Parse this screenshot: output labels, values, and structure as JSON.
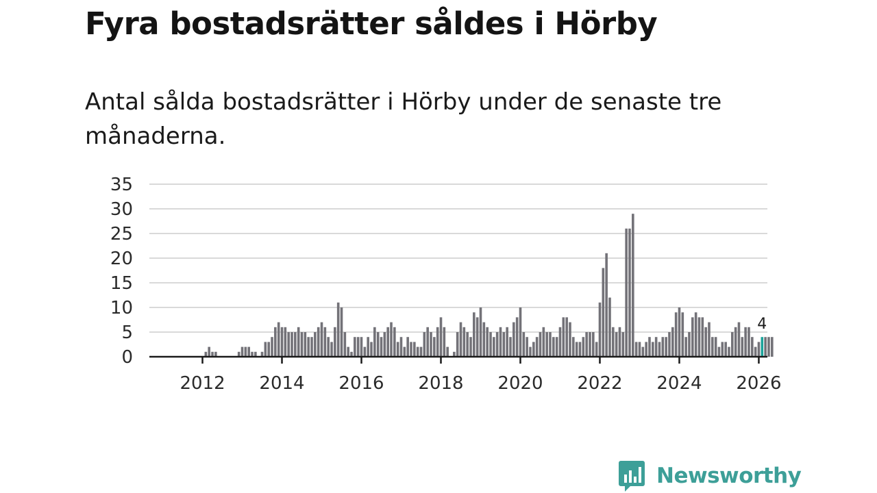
{
  "title": "Fyra bostadsrätter såldes i Hörby",
  "subtitle": "Antal sålda bostadsrätter i Hörby under de senaste tre månaderna.",
  "brand": {
    "name": "Newsworthy",
    "icon": "bar-chart-speech-bubble-icon"
  },
  "colors": {
    "bar": "#737278",
    "highlight": "#1aa39a",
    "grid": "#d9d9d9",
    "axis": "#1a1a1a",
    "brand": "#3d9f98"
  },
  "chart_data": {
    "type": "bar",
    "title": "Fyra bostadsrätter såldes i Hörby",
    "xlabel": "",
    "ylabel": "",
    "ylim": [
      0,
      35
    ],
    "yticks": [
      0,
      5,
      10,
      15,
      20,
      25,
      30,
      35
    ],
    "xticks": [
      "2012",
      "2014",
      "2016",
      "2018",
      "2020",
      "2022",
      "2024",
      "2026"
    ],
    "x_start": "2010-06",
    "grid": true,
    "annotation": {
      "label": "4",
      "index": 188
    },
    "values": [
      0,
      0,
      0,
      0,
      0,
      0,
      0,
      0,
      0,
      0,
      0,
      0,
      0,
      0,
      0,
      0,
      0,
      0,
      0,
      0,
      1,
      2,
      1,
      1,
      0,
      0,
      0,
      0,
      0,
      0,
      1,
      2,
      2,
      2,
      1,
      1,
      0,
      1,
      3,
      3,
      4,
      6,
      7,
      6,
      6,
      5,
      5,
      5,
      6,
      5,
      5,
      4,
      4,
      5,
      6,
      7,
      6,
      4,
      3,
      6,
      11,
      10,
      5,
      2,
      1,
      4,
      4,
      4,
      2,
      4,
      3,
      6,
      5,
      4,
      5,
      6,
      7,
      6,
      3,
      4,
      2,
      4,
      3,
      3,
      2,
      2,
      5,
      6,
      5,
      4,
      6,
      8,
      6,
      2,
      0,
      1,
      5,
      7,
      6,
      5,
      4,
      9,
      8,
      10,
      7,
      6,
      5,
      4,
      5,
      6,
      5,
      6,
      4,
      7,
      8,
      10,
      5,
      4,
      2,
      3,
      4,
      5,
      6,
      5,
      5,
      4,
      4,
      6,
      8,
      8,
      7,
      4,
      3,
      3,
      4,
      5,
      5,
      5,
      3,
      11,
      18,
      21,
      12,
      6,
      5,
      6,
      5,
      26,
      26,
      29,
      3,
      3,
      2,
      3,
      4,
      3,
      4,
      3,
      4,
      4,
      5,
      6,
      9,
      10,
      9,
      4,
      5,
      8,
      9,
      8,
      8,
      6,
      7,
      4,
      4,
      2,
      3,
      3,
      2,
      5,
      6,
      7,
      4,
      6,
      6,
      4,
      2,
      3,
      4,
      4,
      4,
      4
    ]
  }
}
